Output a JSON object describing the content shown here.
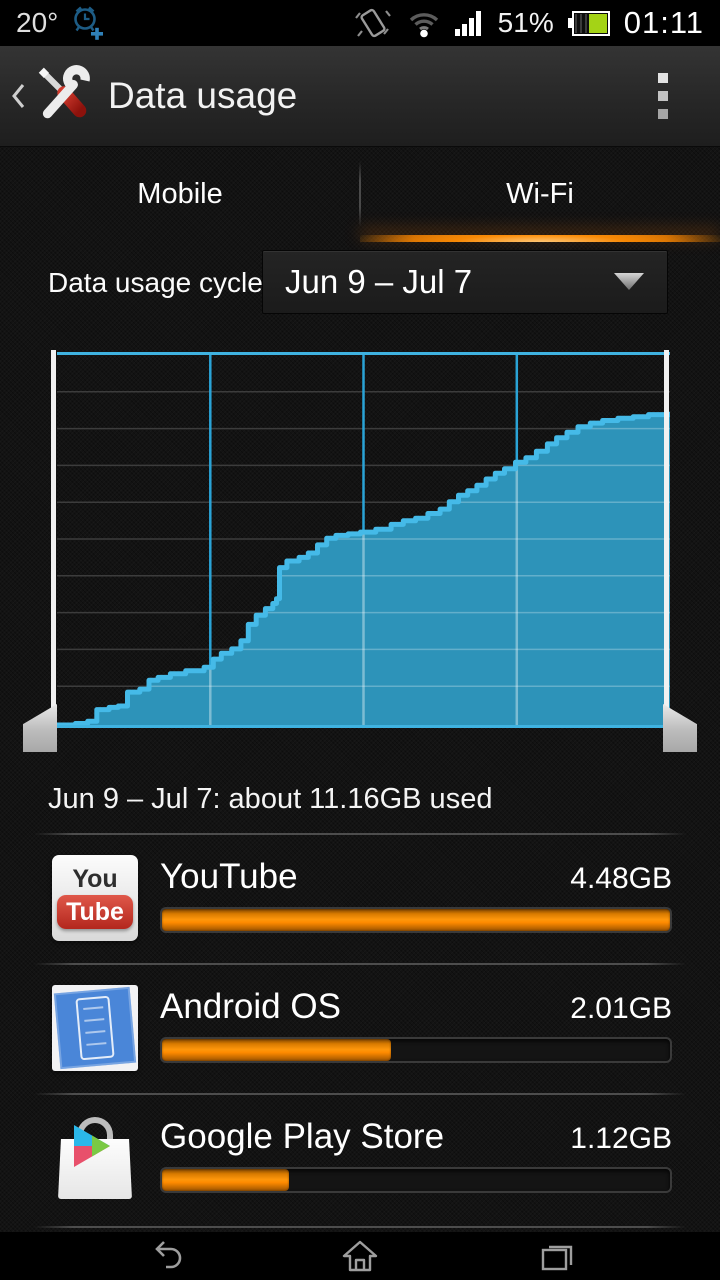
{
  "status_bar": {
    "temperature": "20°",
    "battery_percent": "51%",
    "time": "01:11",
    "icons": [
      "alarm-clock-plus",
      "vibrate",
      "wifi",
      "signal-strength",
      "battery"
    ]
  },
  "action_bar": {
    "title": "Data usage",
    "icons": [
      "back-chevron",
      "tools",
      "overflow-menu"
    ]
  },
  "tabs": [
    {
      "label": "Mobile",
      "selected": false
    },
    {
      "label": "Wi-Fi",
      "selected": true
    }
  ],
  "cycle": {
    "label": "Data usage cycle",
    "value": "Jun 9 – Jul 7"
  },
  "chart_data": {
    "type": "area",
    "title": "Wi-Fi data usage over cycle (cumulative)",
    "x_range": [
      "Jun 9",
      "Jul 7"
    ],
    "total_used_gb": 11.16,
    "y_axis_max_gb": 13,
    "grid": {
      "h_divisions": 10,
      "v_divisions": 4,
      "grid_on": true
    },
    "colors": {
      "line": "#45bae8",
      "fill": "#2d93b9",
      "v_grid": "#2aa3d6",
      "h_grid": "#3c3c3c",
      "border": "#3fb2e0"
    },
    "curve_points_normalized": [
      [
        0.0,
        0.0
      ],
      [
        0.03,
        0.004
      ],
      [
        0.05,
        0.01
      ],
      [
        0.065,
        0.042
      ],
      [
        0.085,
        0.048
      ],
      [
        0.1,
        0.052
      ],
      [
        0.115,
        0.09
      ],
      [
        0.135,
        0.098
      ],
      [
        0.15,
        0.122
      ],
      [
        0.165,
        0.13
      ],
      [
        0.185,
        0.14
      ],
      [
        0.21,
        0.148
      ],
      [
        0.24,
        0.158
      ],
      [
        0.255,
        0.18
      ],
      [
        0.268,
        0.196
      ],
      [
        0.285,
        0.208
      ],
      [
        0.3,
        0.23
      ],
      [
        0.312,
        0.275
      ],
      [
        0.325,
        0.3
      ],
      [
        0.34,
        0.318
      ],
      [
        0.352,
        0.332
      ],
      [
        0.358,
        0.345
      ],
      [
        0.363,
        0.43
      ],
      [
        0.375,
        0.448
      ],
      [
        0.395,
        0.458
      ],
      [
        0.41,
        0.47
      ],
      [
        0.425,
        0.492
      ],
      [
        0.44,
        0.51
      ],
      [
        0.455,
        0.518
      ],
      [
        0.475,
        0.522
      ],
      [
        0.495,
        0.527
      ],
      [
        0.52,
        0.535
      ],
      [
        0.545,
        0.548
      ],
      [
        0.565,
        0.558
      ],
      [
        0.585,
        0.565
      ],
      [
        0.605,
        0.578
      ],
      [
        0.625,
        0.59
      ],
      [
        0.64,
        0.61
      ],
      [
        0.655,
        0.628
      ],
      [
        0.67,
        0.64
      ],
      [
        0.685,
        0.655
      ],
      [
        0.7,
        0.672
      ],
      [
        0.715,
        0.688
      ],
      [
        0.73,
        0.7
      ],
      [
        0.748,
        0.718
      ],
      [
        0.765,
        0.73
      ],
      [
        0.782,
        0.748
      ],
      [
        0.8,
        0.768
      ],
      [
        0.815,
        0.785
      ],
      [
        0.832,
        0.8
      ],
      [
        0.85,
        0.815
      ],
      [
        0.87,
        0.825
      ],
      [
        0.89,
        0.832
      ],
      [
        0.915,
        0.838
      ],
      [
        0.94,
        0.842
      ],
      [
        0.965,
        0.848
      ],
      [
        1.0,
        0.856
      ]
    ]
  },
  "summary": {
    "text": "Jun 9 – Jul 7: about 11.16GB used"
  },
  "apps": [
    {
      "name": "YouTube",
      "usage": "4.48GB",
      "progress": 1.0,
      "icon": "youtube-icon"
    },
    {
      "name": "Android OS",
      "usage": "2.01GB",
      "progress": 0.45,
      "icon": "android-os-icon"
    },
    {
      "name": "Google Play Store",
      "usage": "1.12GB",
      "progress": 0.25,
      "icon": "play-store-icon"
    }
  ],
  "nav_bar": {
    "icons": [
      "back",
      "home",
      "recents"
    ]
  },
  "accent_colors": {
    "holo_blue": "#33b5e5",
    "orange": "#ff8a00",
    "battery_green": "#a4d316"
  }
}
